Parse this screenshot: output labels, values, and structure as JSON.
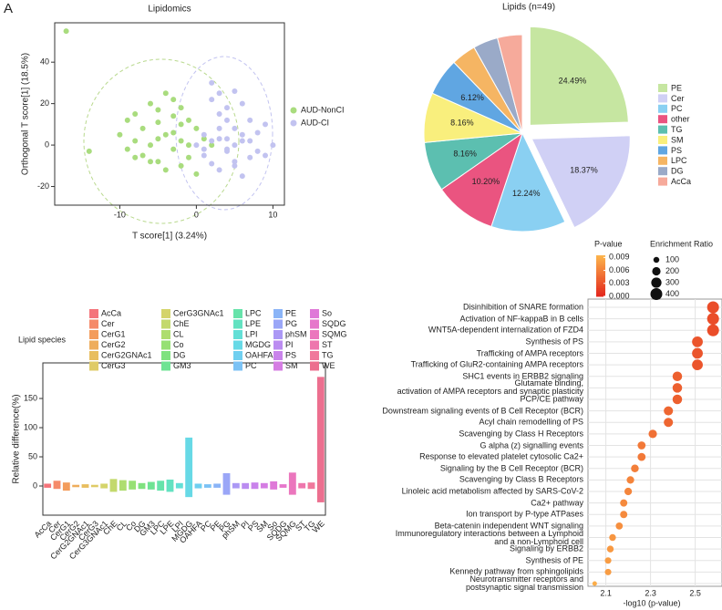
{
  "figure": {
    "label": "A"
  },
  "chart_data": [
    {
      "type": "scatter",
      "title": "Lipidomics",
      "xlabel": "T score[1] (3.24%)",
      "ylabel": "Orthogonal T score[1] (18.5%)",
      "xlim": [
        -18.5,
        11.5
      ],
      "ylim": [
        -29,
        59
      ],
      "xticks": [
        -10,
        0,
        10
      ],
      "yticks": [
        -20,
        0,
        20,
        40
      ],
      "legend": "right",
      "series": [
        {
          "name": "AUD-NonCI",
          "color": "#a9dc7e",
          "x": [
            -17,
            -14,
            -10,
            -9,
            -8,
            -8,
            -7,
            -7,
            -6,
            -6,
            -5,
            -5,
            -5,
            -4,
            -4,
            -3,
            -3,
            -3,
            -2,
            -2,
            -2,
            -1,
            -1,
            0,
            0,
            1,
            -9,
            -6,
            -4,
            -2,
            -8,
            -3,
            -1,
            2,
            -5
          ],
          "values": [
            55,
            -3,
            5,
            12,
            2,
            15,
            -5,
            8,
            0,
            20,
            3,
            11,
            -8,
            5,
            25,
            -2,
            14,
            6,
            -10,
            2,
            18,
            0,
            -6,
            8,
            -14,
            3,
            -2,
            -8,
            -12,
            10,
            -6,
            22,
            12,
            0,
            17
          ]
        },
        {
          "name": "AUD-CI",
          "color": "#c2c3f0",
          "x": [
            0,
            1,
            1,
            2,
            2,
            3,
            3,
            3,
            4,
            4,
            4,
            5,
            5,
            5,
            6,
            6,
            6,
            7,
            7,
            8,
            8,
            9,
            10,
            2,
            3,
            4,
            5,
            6,
            1,
            3,
            7,
            9,
            4,
            2,
            5
          ],
          "values": [
            0,
            5,
            -5,
            30,
            2,
            -12,
            8,
            25,
            3,
            -3,
            12,
            0,
            26,
            -8,
            5,
            -15,
            20,
            2,
            -6,
            6,
            -3,
            10,
            0,
            -9,
            15,
            -2,
            8,
            2,
            -2,
            3,
            12,
            -5,
            18,
            22,
            -10
          ]
        }
      ]
    },
    {
      "type": "pie",
      "title": "Lipids (n=49)",
      "categories": [
        "PE",
        "Cer",
        "PC",
        "other",
        "TG",
        "SM",
        "PS",
        "LPC",
        "DG",
        "AcCa"
      ],
      "values": [
        24.49,
        18.37,
        12.24,
        10.2,
        8.16,
        8.16,
        6.12,
        4.08,
        4.08,
        4.08
      ],
      "value_labels": [
        "24.49%",
        "18.37%",
        "12.24%",
        "10.20%",
        "8.16%",
        "8.16%",
        "6.12%",
        null,
        null,
        null
      ],
      "colors": [
        "#c6e6a1",
        "#d0d0f5",
        "#8ad0f2",
        "#ea5480",
        "#5cbfb0",
        "#f9ef7d",
        "#60a6e2",
        "#f5b563",
        "#9aaac8",
        "#f6aa9b"
      ],
      "explode": [
        true,
        true,
        false,
        false,
        false,
        false,
        false,
        false,
        false,
        false
      ]
    },
    {
      "type": "bar",
      "ylabel": "Relative difference(%)",
      "legend_title": "Lipid species",
      "categories": [
        "AcCa",
        "Cer",
        "CerG1",
        "CerG2",
        "CerG2GNAc1",
        "CerG3",
        "CerG3GNAc1",
        "ChE",
        "CL",
        "Co",
        "DG",
        "GM3",
        "LPC",
        "LPE",
        "LPI",
        "MGDG",
        "OAHFA",
        "PC",
        "PE",
        "PG",
        "phSM",
        "PI",
        "PS",
        "SM",
        "So",
        "SQDG",
        "SQMG",
        "ST",
        "TG",
        "WE"
      ],
      "values": [
        [
          -3,
          4
        ],
        [
          -5,
          9
        ],
        [
          -8,
          6
        ],
        [
          -2,
          2
        ],
        [
          -3,
          3
        ],
        [
          -2,
          2
        ],
        [
          -4,
          4
        ],
        [
          -10,
          12
        ],
        [
          -8,
          10
        ],
        [
          -6,
          9
        ],
        [
          -5,
          5
        ],
        [
          -6,
          7
        ],
        [
          -8,
          9
        ],
        [
          -10,
          11
        ],
        [
          -4,
          5
        ],
        [
          -19,
          83
        ],
        [
          -4,
          4
        ],
        [
          -3,
          3
        ],
        [
          -3,
          4
        ],
        [
          -15,
          22
        ],
        [
          -4,
          5
        ],
        [
          -5,
          5
        ],
        [
          -5,
          6
        ],
        [
          -4,
          5
        ],
        [
          -6,
          8
        ],
        [
          -3,
          3
        ],
        [
          -15,
          23
        ],
        [
          -4,
          5
        ],
        [
          -5,
          6
        ],
        [
          -28,
          187
        ]
      ],
      "colors": [
        "#f4737a",
        "#f58a6a",
        "#f39c5c",
        "#eead5c",
        "#e8be5f",
        "#dfcb66",
        "#d4d46a",
        "#c3d96c",
        "#aedd6f",
        "#96e074",
        "#7fe27f",
        "#6ee393",
        "#66e3aa",
        "#63e2c1",
        "#63dfd6",
        "#67d9e6",
        "#6fcff0",
        "#7bc2f5",
        "#8ab4f7",
        "#9aa6f7",
        "#ab98f5",
        "#bb8cf1",
        "#c983eb",
        "#d57de3",
        "#df79d8",
        "#e677cb",
        "#eb76bd",
        "#ee77ad",
        "#f0799c",
        "#ec6f8f"
      ],
      "ylim": [
        -50,
        211
      ],
      "yticks": [
        0,
        50,
        100,
        150
      ]
    },
    {
      "type": "dot",
      "xlabel": "-log10 (p-value)",
      "xlim": [
        2.02,
        2.62
      ],
      "xticks": [
        2.1,
        2.3,
        2.5
      ],
      "grid": true,
      "categories": [
        "Disinhibition of SNARE formation",
        "Activation of NF-kappaB in B cells",
        "WNT5A-dependent internalization of FZD4",
        "Synthesis of PS",
        "Trafficking of AMPA receptors",
        "Trafficking of GluR2-containing AMPA receptors",
        "SHC1 events in ERBB2 signaling",
        "Glutamate binding,\nactivation of AMPA receptors and synaptic plasticity",
        "PCP/CE pathway",
        "Downstream signaling events of B Cell Receptor (BCR)",
        "Acyl chain remodelling of PS",
        "Scavenging by Class H Receptors",
        "G alpha (z) signalling events",
        "Response to elevated platelet cytosolic Ca2+",
        "Signaling by the B Cell Receptor (BCR)",
        "Scavenging by Class B Receptors",
        "Linoleic acid metabolism affected by SARS-CoV-2",
        "Ca2+ pathway",
        "Ion transport by P-type ATPases",
        "Beta-catenin independent WNT signaling",
        "Immunoregulatory interactions between a Lymphoid\nand a non-Lymphoid cell",
        "Signaling by ERBB2",
        "Synthesis of PE",
        "Kennedy pathway from sphingolipids",
        "Neurotransmitter receptors and\npostsynaptic signal transmission"
      ],
      "values": [
        2.58,
        2.58,
        2.58,
        2.51,
        2.51,
        2.51,
        2.42,
        2.42,
        2.42,
        2.38,
        2.38,
        2.31,
        2.26,
        2.26,
        2.23,
        2.21,
        2.2,
        2.18,
        2.18,
        2.16,
        2.13,
        2.12,
        2.11,
        2.11,
        2.05
      ],
      "pvalues": [
        0.0026,
        0.0026,
        0.0026,
        0.0031,
        0.0031,
        0.0031,
        0.0038,
        0.0038,
        0.0038,
        0.0042,
        0.0042,
        0.0049,
        0.0055,
        0.0055,
        0.0059,
        0.0062,
        0.0063,
        0.0066,
        0.0066,
        0.0069,
        0.0074,
        0.0076,
        0.0078,
        0.0078,
        0.0089
      ],
      "sizes": [
        400,
        400,
        400,
        330,
        330,
        330,
        260,
        260,
        260,
        240,
        240,
        200,
        180,
        180,
        170,
        160,
        160,
        150,
        150,
        140,
        130,
        130,
        120,
        120,
        60
      ],
      "color_title": "P-value",
      "clim": [
        0,
        0.0095
      ],
      "color_range": [
        "#e3261c",
        "#fdb64c"
      ],
      "color_ticks": [
        {
          "value": 0.009,
          "label": "0.009"
        },
        {
          "value": 0.006,
          "label": "0.006"
        },
        {
          "value": 0.003,
          "label": "0.003"
        },
        {
          "value": 0,
          "label": "0.000"
        }
      ],
      "size_title": "Enrichment Ratio",
      "size_ticks": [
        100,
        200,
        300,
        400
      ]
    }
  ]
}
